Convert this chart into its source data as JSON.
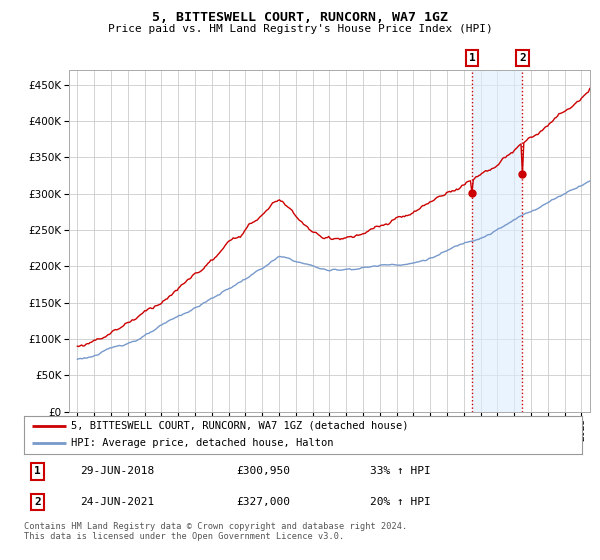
{
  "title": "5, BITTESWELL COURT, RUNCORN, WA7 1GZ",
  "subtitle": "Price paid vs. HM Land Registry's House Price Index (HPI)",
  "ytick_values": [
    0,
    50000,
    100000,
    150000,
    200000,
    250000,
    300000,
    350000,
    400000,
    450000
  ],
  "ylim": [
    0,
    470000
  ],
  "xlim_start": 1994.5,
  "xlim_end": 2025.5,
  "vline1_x": 2018.49,
  "vline2_x": 2021.49,
  "vline_color": "#cc0000",
  "sale1_date": "29-JUN-2018",
  "sale1_price": "£300,950",
  "sale1_hpi": "33% ↑ HPI",
  "sale2_date": "24-JUN-2021",
  "sale2_price": "£327,000",
  "sale2_hpi": "20% ↑ HPI",
  "legend_line1": "5, BITTESWELL COURT, RUNCORN, WA7 1GZ (detached house)",
  "legend_line2": "HPI: Average price, detached house, Halton",
  "red_color": "#cc0000",
  "blue_color": "#7799cc",
  "highlight_bg": "#ddeeff",
  "bg_color": "#ffffff",
  "footer": "Contains HM Land Registry data © Crown copyright and database right 2024.\nThis data is licensed under the Open Government Licence v3.0."
}
